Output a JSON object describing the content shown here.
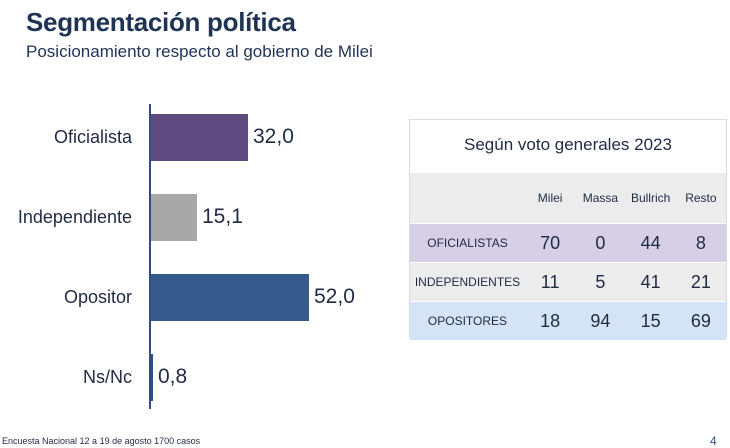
{
  "header": {
    "title": "Segmentación política",
    "subtitle": "Posicionamiento respecto al gobierno de Milei"
  },
  "chart_data": [
    {
      "type": "bar",
      "orientation": "horizontal",
      "categories": [
        "Oficialista",
        "Independiente",
        "Opositor",
        "Ns/Nc"
      ],
      "values": [
        32.0,
        15.1,
        52.0,
        0.8
      ],
      "value_labels": [
        "32,0",
        "15,1",
        "52,0",
        "0,8"
      ],
      "colors": [
        "#5e4a7e",
        "#a8a8a8",
        "#365a8c",
        "#2f4f7f"
      ],
      "xlim": [
        0,
        100
      ],
      "grid": false,
      "legend": "none"
    },
    {
      "type": "table",
      "title": "Según voto generales 2023",
      "columns": [
        "Milei",
        "Massa",
        "Bullrich",
        "Resto"
      ],
      "rows": [
        {
          "label": "OFICIALISTAS",
          "values": [
            70,
            0,
            44,
            8
          ]
        },
        {
          "label": "INDEPENDIENTES",
          "values": [
            11,
            5,
            41,
            21
          ]
        },
        {
          "label": "OPOSITORES",
          "values": [
            18,
            94,
            15,
            69
          ]
        }
      ]
    }
  ],
  "footer": {
    "source": "Encuesta Nacional 12 a 19 de agosto  1700 casos",
    "page_number": "4"
  }
}
